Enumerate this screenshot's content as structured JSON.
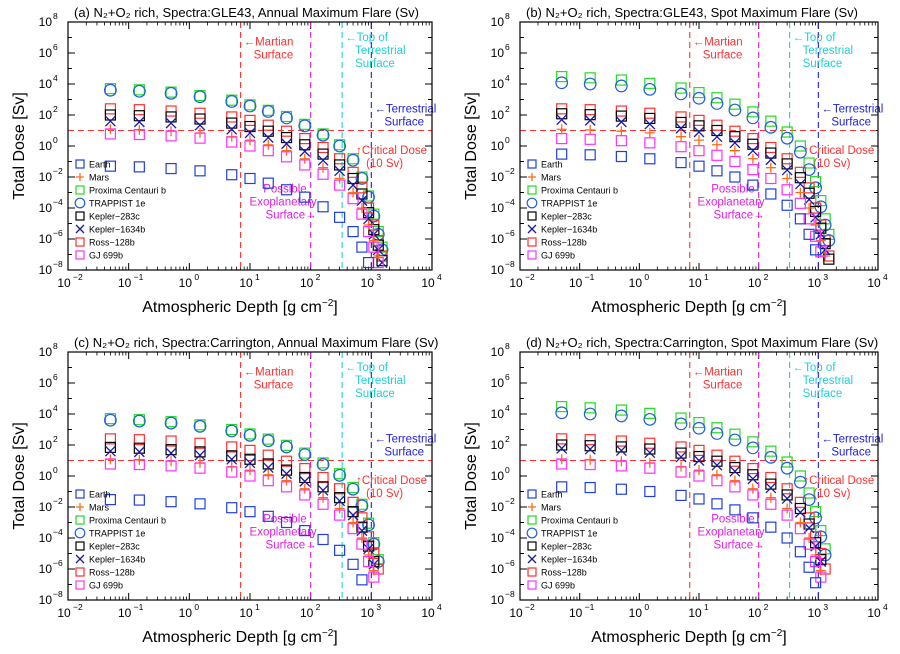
{
  "chart_data": {
    "type": "scatter",
    "xlabel": "Atmospheric Depth [g cm",
    "xlabel_sup": "−2",
    "xlabel_close": "]",
    "ylabel": "Total Dose [Sv]",
    "x_scale": "log",
    "y_scale": "log",
    "xlim": [
      0.01,
      10000
    ],
    "ylim": [
      1e-08,
      100000000.0
    ],
    "x_ticks": [
      "10",
      "10",
      "10",
      "10",
      "10",
      "10",
      "10"
    ],
    "x_tick_exps": [
      "−2",
      "−1",
      "0",
      "1",
      "2",
      "3",
      "4"
    ],
    "y_ticks": [
      "10",
      "10",
      "10",
      "10",
      "10",
      "10",
      "10",
      "10",
      "10"
    ],
    "y_tick_exps": [
      "−8",
      "−6",
      "−4",
      "−2",
      "0",
      "2",
      "4",
      "6",
      "8"
    ],
    "legend_placement": "bottom-left",
    "legend": [
      {
        "name": "Earth",
        "color": "#1f3fe0",
        "marker": "square"
      },
      {
        "name": "Mars",
        "color": "#ff6a1a",
        "marker": "plus"
      },
      {
        "name": "Proxima Centauri b",
        "color": "#22dd22",
        "marker": "square"
      },
      {
        "name": "TRAPPIST 1e",
        "color": "#1f5fe0",
        "marker": "circle"
      },
      {
        "name": "Kepler−283c",
        "color": "#000000",
        "marker": "square"
      },
      {
        "name": "Kepler−1634b",
        "color": "#1a1aa0",
        "marker": "x"
      },
      {
        "name": "Ross−128b",
        "color": "#ff3030",
        "marker": "square"
      },
      {
        "name": "GJ 699b",
        "color": "#ff30ff",
        "marker": "square"
      }
    ],
    "reference_lines": [
      {
        "orientation": "vertical",
        "x": 7,
        "color": "#ff3030",
        "label": [
          "←Martian",
          "Surface"
        ]
      },
      {
        "orientation": "vertical",
        "x": 100,
        "color": "#e020e0",
        "label": [
          "Possible",
          "Exoplanetary",
          "Surface→"
        ]
      },
      {
        "orientation": "vertical",
        "x": 330,
        "color": "#20d0d0",
        "label": [
          "←Top of",
          "Terrestrial",
          "Surface"
        ]
      },
      {
        "orientation": "vertical",
        "x": 1000,
        "color": "#2020e0",
        "label": [
          "←Terrestrial",
          "Surface"
        ]
      },
      {
        "orientation": "horizontal",
        "y": 10,
        "color": "#ff3030",
        "label": [
          "↑Critical Dose",
          "(10 Sv)"
        ]
      }
    ],
    "x": [
      0.05,
      0.15,
      0.5,
      1.5,
      5,
      10,
      20,
      40,
      80,
      160,
      300,
      500,
      700,
      900,
      1100,
      1300,
      1500
    ],
    "panels": [
      {
        "title": "(a) N₂+O₂ rich, Spectra:GLE43, Annual Maximum Flare (Sv)",
        "series": [
          {
            "name": "Proxima Centauri b",
            "values": [
              5000,
              4200,
              3000,
              1800,
              900,
              450,
              200,
              80,
              25,
              6,
              1.2,
              0.15,
              0.01,
              0.0006,
              4e-05,
              3e-06,
              3e-07
            ]
          },
          {
            "name": "TRAPPIST 1e",
            "values": [
              4000,
              3400,
              2500,
              1500,
              750,
              380,
              170,
              65,
              20,
              5,
              1,
              0.12,
              0.008,
              0.0005,
              3e-05,
              2e-06,
              2e-07
            ]
          },
          {
            "name": "Ross−128b",
            "values": [
              250,
              220,
              180,
              130,
              75,
              45,
              22,
              9,
              3,
              0.8,
              0.15,
              0.02,
              0.002,
              0.0001,
              8e-06,
              8e-07,
              8e-08
            ]
          },
          {
            "name": "Kepler−283c",
            "values": [
              100,
              90,
              75,
              55,
              30,
              18,
              9,
              3.5,
              1.2,
              0.3,
              0.06,
              0.008,
              0.0008,
              5e-05,
              4e-06,
              4e-07,
              4e-08
            ]
          },
          {
            "name": "Kepler−1634b",
            "values": [
              40,
              36,
              30,
              22,
              12,
              7,
              3.5,
              1.4,
              0.45,
              0.12,
              0.025,
              0.003,
              0.0003,
              2e-05,
              2e-06,
              2e-07,
              3e-08
            ]
          },
          {
            "name": "Mars",
            "values": [
              12,
              11,
              9,
              7,
              4,
              2.4,
              1.2,
              0.5,
              0.15,
              0.04,
              0.008,
              0.001,
              0.0001,
              8e-06,
              8e-07,
              8e-08,
              null
            ]
          },
          {
            "name": "GJ 699b",
            "values": [
              6,
              5.5,
              4.5,
              3.2,
              1.8,
              1.0,
              0.5,
              0.2,
              0.06,
              0.015,
              0.003,
              0.0004,
              4e-05,
              3e-06,
              3e-07,
              3e-08,
              null
            ]
          },
          {
            "name": "Earth",
            "values": [
              0.05,
              0.045,
              0.035,
              0.025,
              0.014,
              0.008,
              0.004,
              0.0015,
              0.0005,
              0.00012,
              2.5e-05,
              3e-06,
              3e-07,
              3e-08,
              null,
              null,
              null
            ]
          }
        ]
      },
      {
        "title": "(b) N₂+O₂ rich, Spectra:GLE43, Spot Maximum Flare (Sv)",
        "series": [
          {
            "name": "Proxima Centauri b",
            "values": [
              30000,
              25000,
              18000,
              11000,
              5500,
              2800,
              1300,
              500,
              160,
              40,
              8,
              1,
              0.08,
              0.005,
              0.0003,
              2e-05,
              2e-06
            ]
          },
          {
            "name": "TRAPPIST 1e",
            "values": [
              12000,
              10000,
              7500,
              4500,
              2300,
              1200,
              550,
              210,
              65,
              16,
              3.2,
              0.4,
              0.03,
              0.002,
              0.00012,
              8e-06,
              8e-07
            ]
          },
          {
            "name": "Ross−128b",
            "values": [
              250,
              220,
              180,
              130,
              75,
              45,
              22,
              9,
              3,
              0.8,
              0.15,
              0.02,
              0.002,
              0.0001,
              8e-06,
              8e-07,
              8e-08
            ]
          },
          {
            "name": "Kepler−283c",
            "values": [
              120,
              105,
              85,
              60,
              33,
              20,
              10,
              4,
              1.3,
              0.35,
              0.07,
              0.009,
              0.0009,
              6e-05,
              5e-06,
              5e-07,
              5e-08
            ]
          },
          {
            "name": "Kepler−1634b",
            "values": [
              50,
              45,
              36,
              26,
              14,
              8,
              4,
              1.6,
              0.5,
              0.13,
              0.028,
              0.0035,
              0.00035,
              2.5e-05,
              2e-06,
              2e-07,
              null
            ]
          },
          {
            "name": "Mars",
            "values": [
              12,
              11,
              9,
              7,
              4,
              2.4,
              1.2,
              0.5,
              0.15,
              0.04,
              0.008,
              0.001,
              0.0001,
              8e-06,
              8e-07,
              8e-08,
              null
            ]
          },
          {
            "name": "GJ 699b",
            "values": [
              3,
              2.7,
              2.2,
              1.6,
              0.9,
              0.5,
              0.25,
              0.1,
              0.03,
              0.008,
              0.0015,
              0.0002,
              2e-05,
              1.5e-06,
              1.5e-07,
              null,
              null
            ]
          },
          {
            "name": "Earth",
            "values": [
              0.3,
              0.27,
              0.21,
              0.15,
              0.085,
              0.05,
              0.025,
              0.01,
              0.003,
              0.0008,
              0.00015,
              2e-05,
              2e-06,
              2e-07,
              null,
              null,
              null
            ]
          }
        ]
      },
      {
        "title": "(c) N₂+O₂ rich, Spectra:Carrington, Annual Maximum Flare (Sv)",
        "series": [
          {
            "name": "Proxima Centauri b",
            "values": [
              5000,
              4300,
              3200,
              2000,
              1000,
              520,
              240,
              95,
              30,
              7,
              1.4,
              0.18,
              0.015,
              0.0009,
              5e-05,
              4e-06,
              null
            ]
          },
          {
            "name": "TRAPPIST 1e",
            "values": [
              4000,
              3500,
              2600,
              1600,
              800,
              420,
              190,
              75,
              24,
              5.5,
              1.1,
              0.14,
              0.012,
              0.0007,
              4e-05,
              3e-06,
              null
            ]
          },
          {
            "name": "Ross−128b",
            "values": [
              250,
              220,
              180,
              130,
              75,
              45,
              22,
              9,
              3,
              0.8,
              0.15,
              0.02,
              0.002,
              0.00012,
              1e-05,
              1e-06,
              null
            ]
          },
          {
            "name": "Kepler−283c",
            "values": [
              70,
              62,
              50,
              36,
              20,
              12,
              6,
              2.4,
              0.8,
              0.2,
              0.04,
              0.005,
              0.0005,
              3e-05,
              3e-06,
              null,
              null
            ]
          },
          {
            "name": "Kepler−1634b",
            "values": [
              40,
              36,
              30,
              22,
              12,
              7,
              3.5,
              1.4,
              0.45,
              0.12,
              0.025,
              0.003,
              0.0003,
              2e-05,
              2e-06,
              null,
              null
            ]
          },
          {
            "name": "Mars",
            "values": [
              12,
              11,
              9,
              7,
              4,
              2.4,
              1.2,
              0.5,
              0.15,
              0.04,
              0.008,
              0.001,
              0.0001,
              8e-06,
              8e-07,
              null,
              null
            ]
          },
          {
            "name": "GJ 699b",
            "values": [
              6,
              5.5,
              4.5,
              3.2,
              1.8,
              1.0,
              0.5,
              0.2,
              0.06,
              0.015,
              0.003,
              0.0004,
              4e-05,
              3e-06,
              3e-07,
              null,
              null
            ]
          },
          {
            "name": "Earth",
            "values": [
              0.03,
              0.028,
              0.022,
              0.016,
              0.009,
              0.005,
              0.0025,
              0.001,
              0.0003,
              8e-05,
              1.6e-05,
              2e-06,
              2e-07,
              null,
              null,
              null,
              null
            ]
          }
        ]
      },
      {
        "title": "(d) N₂+O₂ rich, Spectra:Carrington, Spot Maximum Flare (Sv)",
        "series": [
          {
            "name": "Proxima Centauri b",
            "values": [
              30000,
              25000,
              18000,
              11000,
              5500,
              2800,
              1300,
              500,
              160,
              40,
              8,
              1,
              0.08,
              0.005,
              0.0003,
              2e-05,
              null
            ]
          },
          {
            "name": "TRAPPIST 1e",
            "values": [
              12000,
              10000,
              7500,
              4500,
              2300,
              1200,
              550,
              210,
              65,
              16,
              3.2,
              0.4,
              0.03,
              0.002,
              0.00012,
              8e-06,
              null
            ]
          },
          {
            "name": "Ross−128b",
            "values": [
              250,
              220,
              180,
              130,
              75,
              45,
              22,
              9,
              3,
              0.8,
              0.15,
              0.02,
              0.002,
              0.00012,
              1e-05,
              1e-06,
              null
            ]
          },
          {
            "name": "Kepler−283c",
            "values": [
              100,
              90,
              75,
              55,
              30,
              18,
              9,
              3.5,
              1.2,
              0.3,
              0.06,
              0.008,
              0.0008,
              5e-05,
              4e-06,
              null,
              null
            ]
          },
          {
            "name": "Kepler−1634b",
            "values": [
              60,
              54,
              44,
              32,
              17,
              10,
              5,
              2,
              0.65,
              0.17,
              0.035,
              0.0045,
              0.00045,
              3e-05,
              3e-06,
              null,
              null
            ]
          },
          {
            "name": "Mars",
            "values": [
              12,
              11,
              9,
              7,
              4,
              2.4,
              1.2,
              0.5,
              0.15,
              0.04,
              0.008,
              0.001,
              0.0001,
              8e-06,
              8e-07,
              null,
              null
            ]
          },
          {
            "name": "GJ 699b",
            "values": [
              6,
              5.5,
              4.5,
              3.2,
              1.8,
              1.0,
              0.5,
              0.2,
              0.06,
              0.015,
              0.003,
              0.0004,
              4e-05,
              3e-06,
              3e-07,
              null,
              null
            ]
          },
          {
            "name": "Earth",
            "values": [
              0.2,
              0.18,
              0.14,
              0.1,
              0.056,
              0.033,
              0.016,
              0.0065,
              0.002,
              0.0005,
              0.0001,
              1.3e-05,
              1.3e-06,
              1.3e-07,
              null,
              null,
              null
            ]
          }
        ]
      }
    ]
  }
}
